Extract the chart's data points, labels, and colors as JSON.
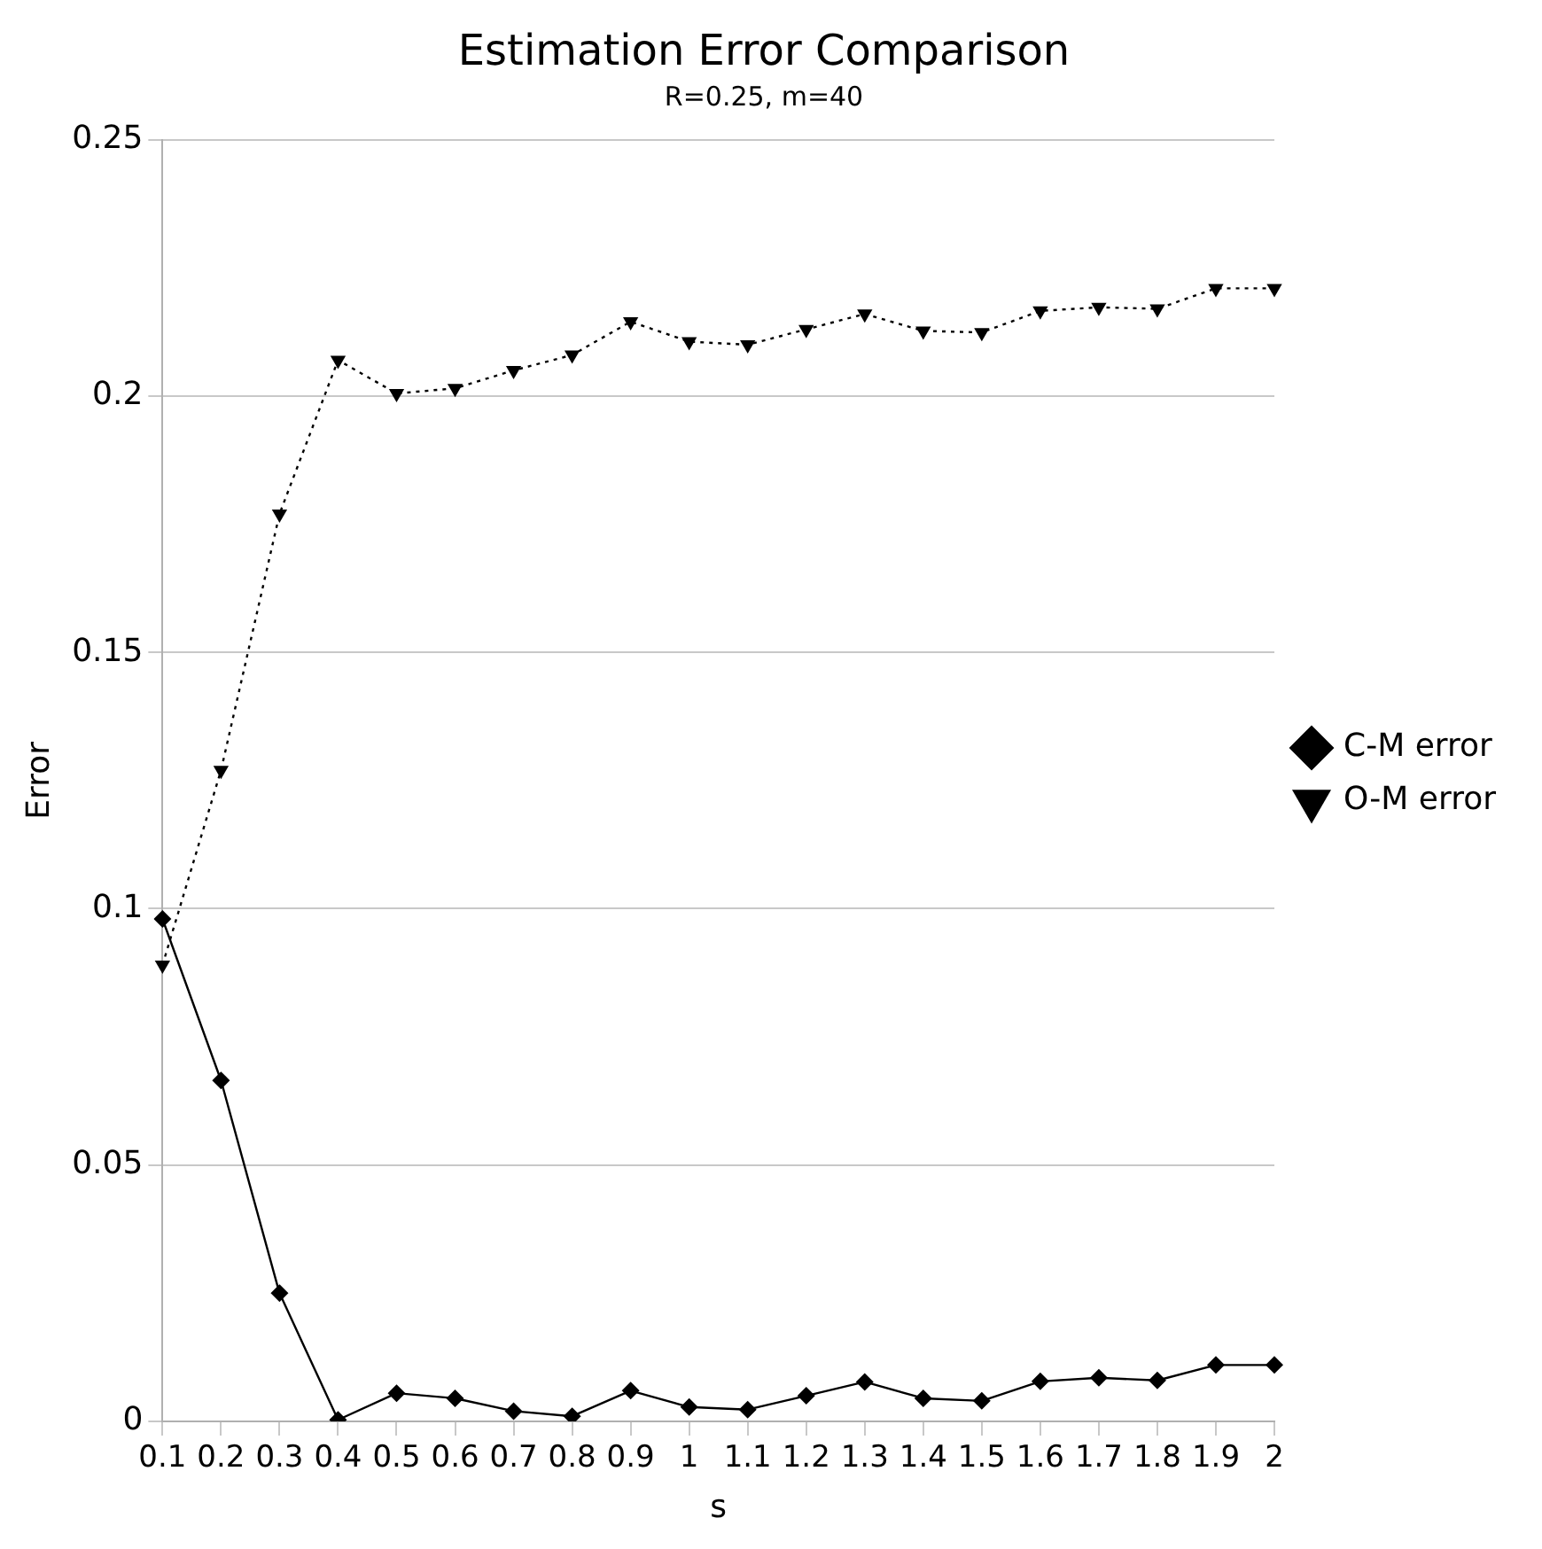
{
  "chart_data": {
    "type": "line",
    "title": "Estimation Error Comparison",
    "subtitle": "R=0.25, m=40",
    "xlabel": "s",
    "ylabel": "Error",
    "categories": [
      "0.1",
      "0.2",
      "0.3",
      "0.4",
      "0.5",
      "0.6",
      "0.7",
      "0.8",
      "0.9",
      "1",
      "1.1",
      "1.2",
      "1.3",
      "1.4",
      "1.5",
      "1.6",
      "1.7",
      "1.8",
      "1.9",
      "2"
    ],
    "series": [
      {
        "name": "C-M error",
        "color": "#000000",
        "marker": "diamond",
        "line_style": "solid",
        "values": [
          0.098,
          0.0665,
          0.025,
          0.0003,
          0.0055,
          0.0045,
          0.002,
          0.001,
          0.006,
          0.0028,
          0.0023,
          0.005,
          0.0077,
          0.0045,
          0.004,
          0.0078,
          0.0085,
          0.008,
          0.011,
          0.011
        ]
      },
      {
        "name": "O-M error",
        "color": "#000000",
        "marker": "triangle",
        "line_style": "dotted",
        "values": [
          0.089,
          0.127,
          0.177,
          0.207,
          0.2005,
          0.2015,
          0.205,
          0.208,
          0.2145,
          0.2106,
          0.21,
          0.213,
          0.216,
          0.2127,
          0.2124,
          0.2166,
          0.2173,
          0.217,
          0.221,
          0.221
        ]
      }
    ],
    "ylim": [
      0,
      0.25
    ],
    "yticks": [
      0,
      0.05,
      0.1,
      0.15,
      0.2,
      0.25
    ],
    "grid": "y",
    "legend": "right"
  }
}
